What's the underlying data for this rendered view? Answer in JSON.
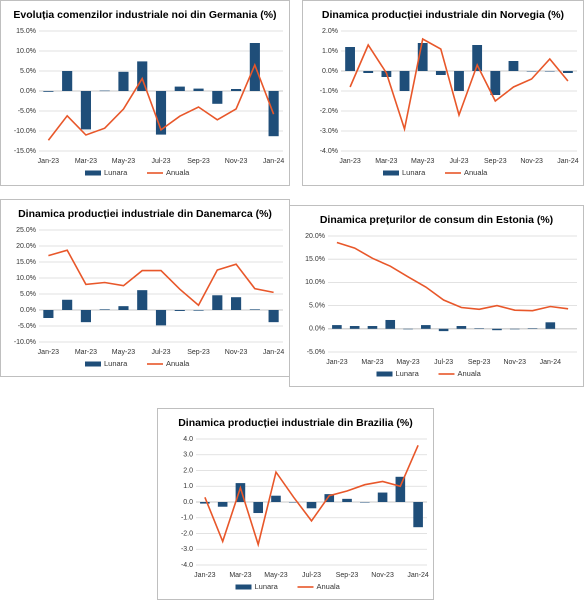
{
  "chart_data": [
    {
      "type": "combo",
      "title": "Evoluția comenzilor industriale noi din Germania (%)",
      "categories": [
        "Jan-23",
        null,
        "Mar-23",
        null,
        "May-23",
        null,
        "Jul-23",
        null,
        "Sep-23",
        null,
        "Nov-23",
        null,
        "Jan-24"
      ],
      "series": [
        {
          "name": "Lunara",
          "color": "#1f4e79",
          "mark": "bar",
          "values": [
            -0.2,
            5.0,
            -9.6,
            0.1,
            4.8,
            7.4,
            -10.9,
            1.1,
            0.6,
            -3.2,
            0.5,
            12.0,
            -11.3
          ]
        },
        {
          "name": "Anuala",
          "color": "#e8572a",
          "mark": "line",
          "values": [
            -12.3,
            -6.2,
            -11.0,
            -9.3,
            -4.5,
            3.1,
            -9.7,
            -6.3,
            -4.0,
            -7.2,
            -4.5,
            6.5,
            -5.8
          ]
        }
      ],
      "ylim": [
        -15,
        15
      ],
      "yticks": [
        {
          "value": -15,
          "label": "-15.0%"
        },
        {
          "value": -10,
          "label": "-10.0%"
        },
        {
          "value": -5,
          "label": "-5.0%"
        },
        {
          "value": 0,
          "label": "0.0%"
        },
        {
          "value": 5,
          "label": "5.0%"
        },
        {
          "value": 10,
          "label": "10.0%"
        },
        {
          "value": 15,
          "label": "15.0%"
        }
      ],
      "grid": true,
      "legend": "bottom"
    },
    {
      "type": "combo",
      "title": "Dinamica producției industriale din Norvegia (%)",
      "categories": [
        "Jan-23",
        null,
        "Mar-23",
        null,
        "May-23",
        null,
        "Jul-23",
        null,
        "Sep-23",
        null,
        "Nov-23",
        null,
        "Jan-24"
      ],
      "series": [
        {
          "name": "Lunara",
          "color": "#1f4e79",
          "mark": "bar",
          "values": [
            1.2,
            -0.1,
            -0.3,
            -1.0,
            1.4,
            -0.2,
            -1.0,
            1.3,
            -1.2,
            0.5,
            0.0,
            0.0,
            -0.1
          ]
        },
        {
          "name": "Anuala",
          "color": "#e8572a",
          "mark": "line",
          "values": [
            -0.8,
            1.3,
            -0.1,
            -2.9,
            1.6,
            1.1,
            -2.2,
            0.3,
            -1.5,
            -0.8,
            -0.4,
            0.6,
            -0.5
          ]
        }
      ],
      "ylim": [
        -4,
        2
      ],
      "yticks": [
        {
          "value": -4,
          "label": "-4.0%"
        },
        {
          "value": -3,
          "label": "-3.0%"
        },
        {
          "value": -2,
          "label": "-2.0%"
        },
        {
          "value": -1,
          "label": "-1.0%"
        },
        {
          "value": 0,
          "label": "0.0%"
        },
        {
          "value": 1,
          "label": "1.0%"
        },
        {
          "value": 2,
          "label": "2.0%"
        }
      ],
      "grid": true,
      "legend": "bottom"
    },
    {
      "type": "combo",
      "title": "Dinamica producției industriale din Danemarca (%)",
      "categories": [
        "Jan-23",
        null,
        "Mar-23",
        null,
        "May-23",
        null,
        "Jul-23",
        null,
        "Sep-23",
        null,
        "Nov-23",
        null,
        "Jan-24"
      ],
      "series": [
        {
          "name": "Lunara",
          "color": "#1f4e79",
          "mark": "bar",
          "values": [
            -2.5,
            3.2,
            -3.8,
            0.2,
            1.2,
            6.2,
            -4.8,
            -0.3,
            -0.2,
            4.6,
            4.0,
            0.2,
            -3.8
          ]
        },
        {
          "name": "Anuala",
          "color": "#e8572a",
          "mark": "line",
          "values": [
            17.0,
            18.7,
            8.0,
            8.6,
            7.6,
            12.3,
            12.3,
            6.5,
            1.5,
            12.5,
            14.3,
            6.7,
            5.5
          ]
        }
      ],
      "ylim": [
        -10,
        25
      ],
      "yticks": [
        {
          "value": -10,
          "label": "-10.0%"
        },
        {
          "value": -5,
          "label": "-5.0%"
        },
        {
          "value": 0,
          "label": "0.0%"
        },
        {
          "value": 5,
          "label": "5.0%"
        },
        {
          "value": 10,
          "label": "10.0%"
        },
        {
          "value": 15,
          "label": "15.0%"
        },
        {
          "value": 20,
          "label": "20.0%"
        },
        {
          "value": 25,
          "label": "25.0%"
        }
      ],
      "grid": true,
      "legend": "bottom"
    },
    {
      "type": "combo",
      "title": "Dinamica prețurilor de consum din Estonia (%)",
      "categories": [
        "Jan-23",
        null,
        "Mar-23",
        null,
        "May-23",
        null,
        "Jul-23",
        null,
        "Sep-23",
        null,
        "Nov-23",
        null,
        "Jan-24",
        null
      ],
      "series": [
        {
          "name": "Lunara",
          "color": "#1f4e79",
          "mark": "bar",
          "values": [
            0.8,
            0.6,
            0.6,
            1.9,
            0.0,
            0.8,
            -0.5,
            0.6,
            0.1,
            -0.3,
            0.0,
            0.1,
            1.4,
            null
          ]
        },
        {
          "name": "Anuala",
          "color": "#e8572a",
          "mark": "line",
          "values": [
            18.6,
            17.4,
            15.2,
            13.5,
            11.2,
            9.0,
            6.2,
            4.6,
            4.2,
            5.0,
            4.0,
            3.9,
            4.8,
            4.3
          ]
        }
      ],
      "ylim": [
        -5,
        20
      ],
      "yticks": [
        {
          "value": -5,
          "label": "-5.0%"
        },
        {
          "value": 0,
          "label": "0.0%"
        },
        {
          "value": 5,
          "label": "5.0%"
        },
        {
          "value": 10,
          "label": "10.0%"
        },
        {
          "value": 15,
          "label": "15.0%"
        },
        {
          "value": 20,
          "label": "20.0%"
        }
      ],
      "grid": true,
      "legend": "bottom"
    },
    {
      "type": "combo",
      "title": "Dinamica producției industriale din Brazilia (%)",
      "categories": [
        "Jan-23",
        null,
        "Mar-23",
        null,
        "May-23",
        null,
        "Jul-23",
        null,
        "Sep-23",
        null,
        "Nov-23",
        null,
        "Jan-24"
      ],
      "series": [
        {
          "name": "Lunara",
          "color": "#1f4e79",
          "mark": "bar",
          "values": [
            -0.1,
            -0.3,
            1.2,
            -0.7,
            0.4,
            0.0,
            -0.4,
            0.5,
            0.2,
            0.0,
            0.6,
            1.6,
            -1.6
          ]
        },
        {
          "name": "Anuala",
          "color": "#e8572a",
          "mark": "line",
          "values": [
            0.3,
            -2.5,
            0.9,
            -2.7,
            1.9,
            0.3,
            -1.2,
            0.4,
            0.7,
            1.1,
            1.3,
            1.0,
            3.6
          ]
        }
      ],
      "ylim": [
        -4,
        4
      ],
      "yticks": [
        {
          "value": -4,
          "label": "-4.0"
        },
        {
          "value": -3,
          "label": "-3.0"
        },
        {
          "value": -2,
          "label": "-2.0"
        },
        {
          "value": -1,
          "label": "-1.0"
        },
        {
          "value": 0,
          "label": "0.0"
        },
        {
          "value": 1,
          "label": "1.0"
        },
        {
          "value": 2,
          "label": "2.0"
        },
        {
          "value": 3,
          "label": "3.0"
        },
        {
          "value": 4,
          "label": "4.0"
        }
      ],
      "grid": true,
      "legend": "bottom"
    }
  ]
}
